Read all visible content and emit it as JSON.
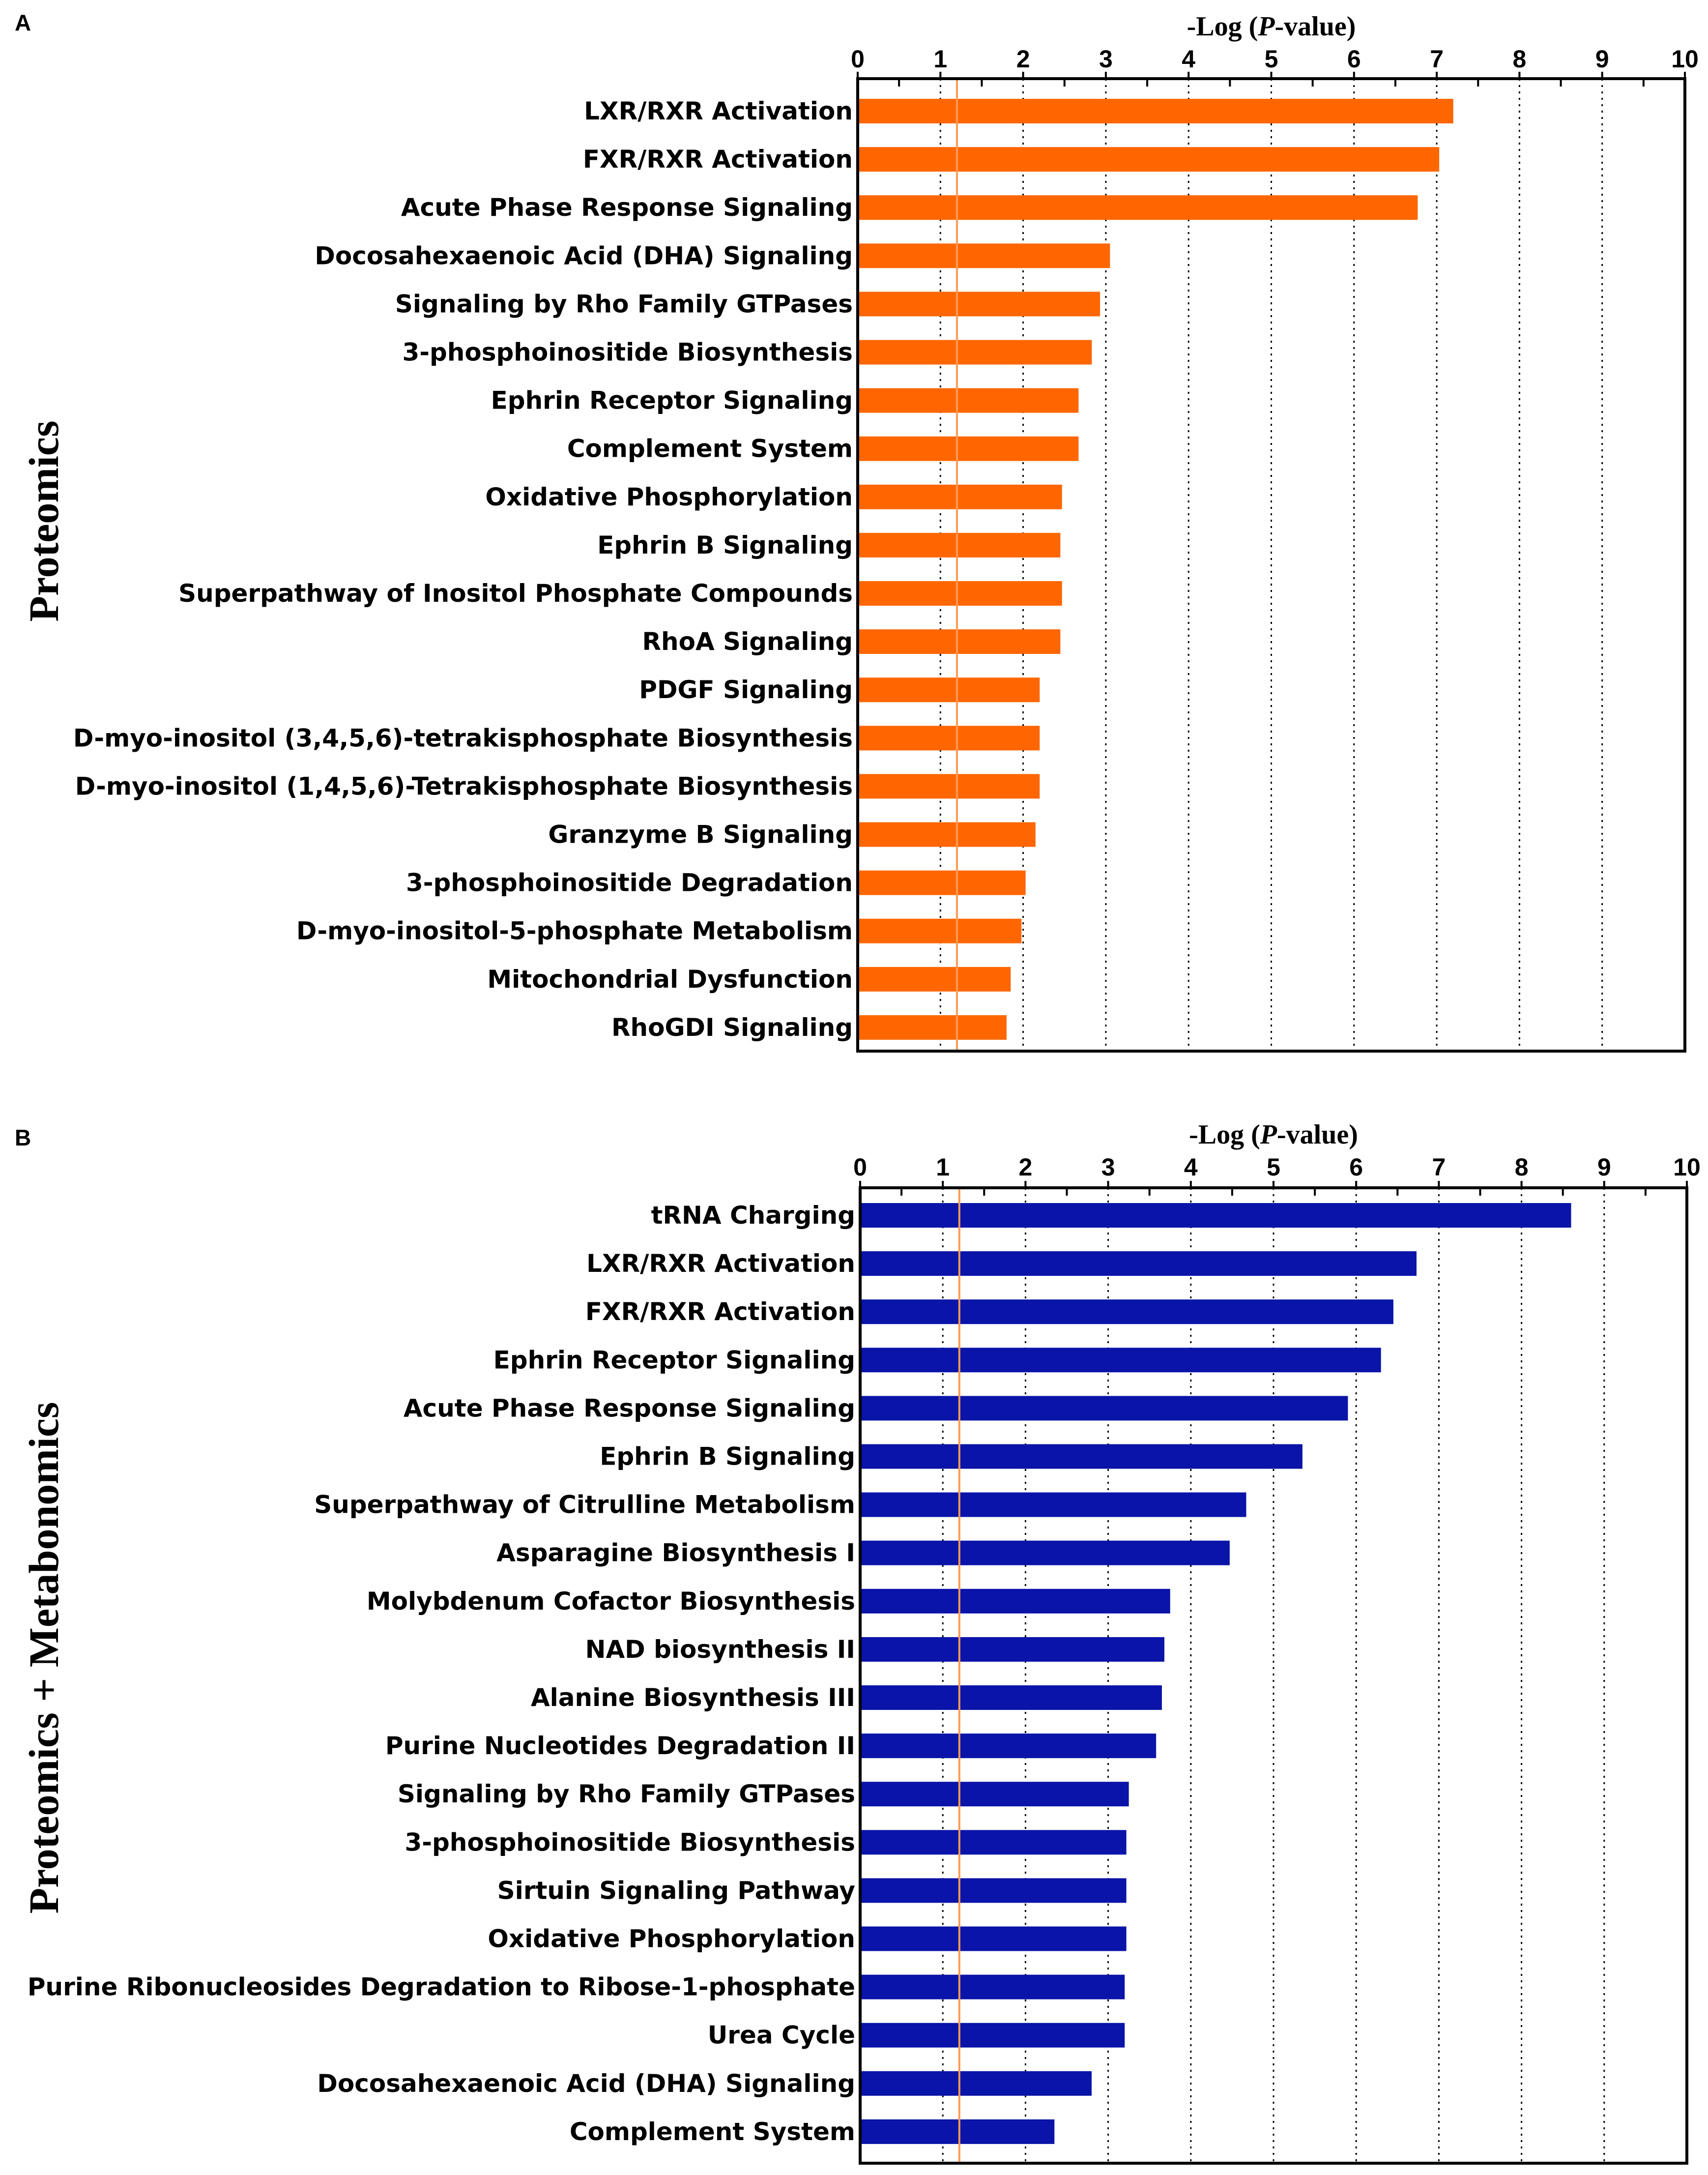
{
  "chart_data": [
    {
      "panel": "A",
      "side_label": "Proteomics",
      "type": "bar",
      "orientation": "horizontal",
      "xlabel_prefix": "-Log (",
      "xlabel_italic": "P",
      "xlabel_suffix": "-value)",
      "xlim": [
        0,
        10
      ],
      "ticks": [
        "0",
        "1",
        "2",
        "3",
        "4",
        "5",
        "6",
        "7",
        "8",
        "9",
        "10"
      ],
      "threshold": 1.2,
      "bar_color": "#ff6600",
      "threshold_color": "#ff9a55",
      "categories": [
        "LXR/RXR Activation",
        "FXR/RXR Activation",
        "Acute Phase Response Signaling",
        "Docosahexaenoic Acid (DHA) Signaling",
        "Signaling by Rho Family GTPases",
        "3-phosphoinositide Biosynthesis",
        "Ephrin Receptor Signaling",
        "Complement System",
        "Oxidative Phosphorylation",
        "Ephrin B Signaling",
        "Superpathway of Inositol Phosphate Compounds",
        "RhoA Signaling",
        "PDGF Signaling",
        "D-myo-inositol (3,4,5,6)-tetrakisphosphate Biosynthesis",
        "D-myo-inositol (1,4,5,6)-Tetrakisphosphate Biosynthesis",
        "Granzyme B Signaling",
        "3-phosphoinositide Degradation",
        "D-myo-inositol-5-phosphate Metabolism",
        "Mitochondrial Dysfunction",
        "RhoGDI Signaling"
      ],
      "values": [
        7.2,
        7.03,
        6.77,
        3.05,
        2.93,
        2.83,
        2.67,
        2.67,
        2.47,
        2.45,
        2.47,
        2.45,
        2.2,
        2.2,
        2.2,
        2.15,
        2.03,
        1.98,
        1.85,
        1.8
      ]
    },
    {
      "panel": "B",
      "side_label": "Proteomics + Metabonomics",
      "type": "bar",
      "orientation": "horizontal",
      "xlabel_prefix": "-Log (",
      "xlabel_italic": "P",
      "xlabel_suffix": "-value)",
      "xlim": [
        0,
        10
      ],
      "ticks": [
        "0",
        "1",
        "2",
        "3",
        "4",
        "5",
        "6",
        "7",
        "8",
        "9",
        "10"
      ],
      "threshold": 1.2,
      "bar_color": "#0a14a8",
      "threshold_color": "#ff9a55",
      "categories": [
        "tRNA Charging",
        "LXR/RXR Activation",
        "FXR/RXR Activation",
        "Ephrin Receptor Signaling",
        "Acute Phase Response Signaling",
        "Ephrin B Signaling",
        "Superpathway of Citrulline Metabolism",
        "Asparagine Biosynthesis I",
        "Molybdenum Cofactor Biosynthesis",
        "NAD biosynthesis II",
        "Alanine Biosynthesis III",
        "Purine Nucleotides Degradation II",
        "Signaling by Rho Family GTPases",
        "3-phosphoinositide Biosynthesis",
        "Sirtuin Signaling Pathway",
        "Oxidative Phosphorylation",
        "Purine Ribonucleosides Degradation to Ribose-1-phosphate",
        "Urea Cycle",
        "Docosahexaenoic Acid (DHA) Signaling",
        "Complement System"
      ],
      "values": [
        8.6,
        6.73,
        6.45,
        6.3,
        5.9,
        5.35,
        4.67,
        4.47,
        3.75,
        3.68,
        3.65,
        3.58,
        3.25,
        3.22,
        3.22,
        3.22,
        3.2,
        3.2,
        2.8,
        2.35
      ]
    }
  ]
}
